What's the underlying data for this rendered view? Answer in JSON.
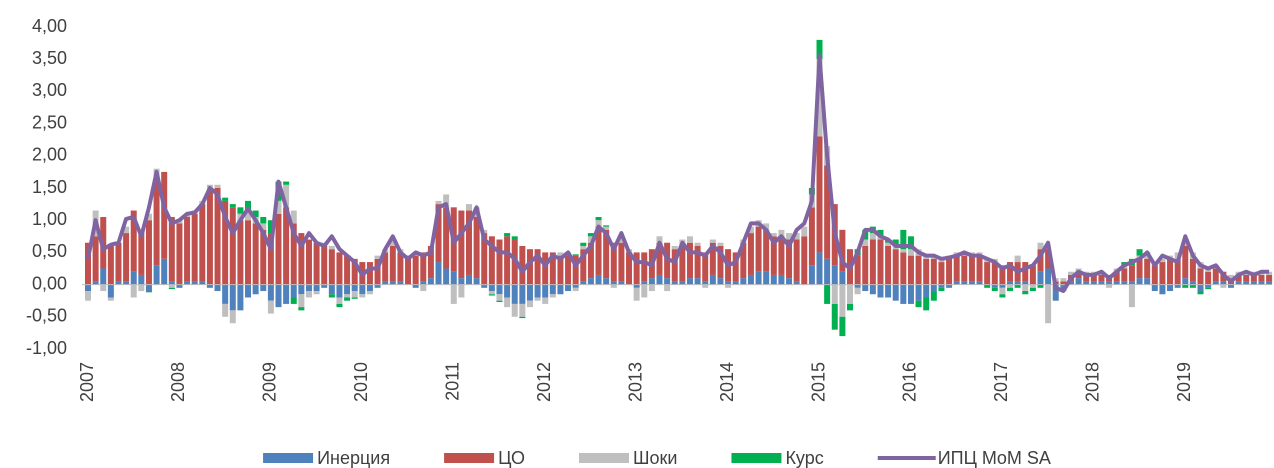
{
  "chart_data": {
    "type": "bar",
    "categories": [
      "2007",
      null,
      null,
      null,
      null,
      null,
      null,
      null,
      null,
      null,
      null,
      null,
      "2008",
      null,
      null,
      null,
      null,
      null,
      null,
      null,
      null,
      null,
      null,
      null,
      "2009",
      null,
      null,
      null,
      null,
      null,
      null,
      null,
      null,
      null,
      null,
      null,
      "2010",
      null,
      null,
      null,
      null,
      null,
      null,
      null,
      null,
      null,
      null,
      null,
      "2011",
      null,
      null,
      null,
      null,
      null,
      null,
      null,
      null,
      null,
      null,
      null,
      "2012",
      null,
      null,
      null,
      null,
      null,
      null,
      null,
      null,
      null,
      null,
      null,
      "2013",
      null,
      null,
      null,
      null,
      null,
      null,
      null,
      null,
      null,
      null,
      null,
      "2014",
      null,
      null,
      null,
      null,
      null,
      null,
      null,
      null,
      null,
      null,
      null,
      "2015",
      null,
      null,
      null,
      null,
      null,
      null,
      null,
      null,
      null,
      null,
      null,
      "2016",
      null,
      null,
      null,
      null,
      null,
      null,
      null,
      null,
      null,
      null,
      null,
      "2017",
      null,
      null,
      null,
      null,
      null,
      null,
      null,
      null,
      null,
      null,
      null,
      "2018",
      null,
      null,
      null,
      null,
      null,
      null,
      null,
      null,
      null,
      null,
      null,
      "2019",
      null,
      null,
      null,
      null,
      null,
      null,
      null,
      null,
      null,
      null,
      null
    ],
    "series": [
      {
        "name": "Инерция",
        "color": "#4f81bd",
        "values": [
          -0.1,
          0.05,
          0.25,
          -0.2,
          0.05,
          0.05,
          0.2,
          0.15,
          -0.1,
          0.3,
          0.4,
          0.05,
          -0.05,
          0.05,
          0.05,
          0.05,
          -0.05,
          -0.1,
          -0.3,
          -0.4,
          -0.4,
          -0.2,
          -0.15,
          -0.1,
          -0.25,
          -0.35,
          -0.3,
          -0.2,
          -0.15,
          -0.1,
          -0.1,
          -0.05,
          -0.15,
          -0.2,
          -0.15,
          -0.1,
          -0.15,
          -0.1,
          -0.05,
          0.05,
          0.05,
          0.05,
          0.0,
          -0.05,
          0.05,
          0.1,
          0.35,
          0.25,
          0.2,
          0.1,
          0.15,
          0.1,
          -0.05,
          -0.1,
          -0.15,
          -0.2,
          -0.3,
          -0.3,
          -0.25,
          -0.2,
          -0.2,
          -0.15,
          -0.15,
          -0.1,
          -0.05,
          0.05,
          0.1,
          0.15,
          0.1,
          0.05,
          0.05,
          0.0,
          -0.05,
          0.05,
          0.1,
          0.15,
          0.1,
          0.05,
          0.05,
          0.1,
          0.1,
          0.05,
          0.15,
          0.1,
          0.05,
          0.05,
          0.1,
          0.15,
          0.2,
          0.2,
          0.15,
          0.15,
          0.1,
          0.05,
          0.0,
          0.3,
          0.5,
          0.4,
          0.3,
          0.2,
          0.0,
          -0.05,
          -0.1,
          -0.15,
          -0.2,
          -0.2,
          -0.25,
          -0.3,
          -0.3,
          -0.25,
          -0.2,
          -0.1,
          -0.05,
          -0.05,
          0.05,
          0.05,
          0.05,
          0.05,
          0.0,
          -0.05,
          -0.05,
          0.05,
          0.05,
          0.05,
          0.0,
          0.2,
          0.25,
          -0.25,
          -0.1,
          0.05,
          0.1,
          0.05,
          0.05,
          0.05,
          0.05,
          0.05,
          0.05,
          0.05,
          0.1,
          0.1,
          -0.1,
          -0.15,
          -0.1,
          -0.05,
          0.1,
          0.05,
          -0.1,
          -0.05,
          0.05,
          0.05,
          -0.05,
          0.05,
          0.05,
          0.05,
          0.05,
          0.05
        ]
      },
      {
        "name": "ЦО",
        "color": "#c0504d",
        "values": [
          0.65,
          0.7,
          0.8,
          0.6,
          0.6,
          0.75,
          0.95,
          0.7,
          1.0,
          1.3,
          1.35,
          1.0,
          0.95,
          1.0,
          1.05,
          1.2,
          1.45,
          1.5,
          1.3,
          1.2,
          1.0,
          1.0,
          0.95,
          0.85,
          0.8,
          1.1,
          1.2,
          0.95,
          0.8,
          0.7,
          0.65,
          0.6,
          0.55,
          0.5,
          0.45,
          0.4,
          0.35,
          0.35,
          0.4,
          0.45,
          0.55,
          0.45,
          0.45,
          0.45,
          0.45,
          0.5,
          0.9,
          0.95,
          1.0,
          1.05,
          1.0,
          0.95,
          0.8,
          0.75,
          0.7,
          0.75,
          0.7,
          0.6,
          0.55,
          0.55,
          0.5,
          0.5,
          0.45,
          0.45,
          0.45,
          0.5,
          0.55,
          0.75,
          0.75,
          0.6,
          0.6,
          0.5,
          0.5,
          0.45,
          0.45,
          0.5,
          0.55,
          0.5,
          0.55,
          0.55,
          0.5,
          0.45,
          0.5,
          0.5,
          0.5,
          0.45,
          0.55,
          0.65,
          0.7,
          0.65,
          0.6,
          0.6,
          0.6,
          0.65,
          0.75,
          0.9,
          1.8,
          1.45,
          0.95,
          0.65,
          0.55,
          0.45,
          0.6,
          0.7,
          0.7,
          0.6,
          0.55,
          0.5,
          0.45,
          0.45,
          0.4,
          0.4,
          0.35,
          0.4,
          0.4,
          0.4,
          0.4,
          0.4,
          0.35,
          0.35,
          0.3,
          0.3,
          0.3,
          0.3,
          0.3,
          0.35,
          0.3,
          0.05,
          0.05,
          0.1,
          0.1,
          0.1,
          0.1,
          0.1,
          0.1,
          0.15,
          0.2,
          0.25,
          0.3,
          0.3,
          0.3,
          0.35,
          0.4,
          0.4,
          0.5,
          0.35,
          0.25,
          0.2,
          0.2,
          0.15,
          0.1,
          0.1,
          0.1,
          0.1,
          0.1,
          0.1
        ]
      },
      {
        "name": "Шоки",
        "color": "#bfbfbf",
        "values": [
          -0.15,
          0.4,
          -0.1,
          -0.05,
          0.0,
          0.1,
          -0.2,
          -0.1,
          0.1,
          0.2,
          0.0,
          -0.05,
          0.05,
          0.05,
          0.05,
          0.05,
          0.1,
          0.05,
          -0.2,
          -0.2,
          0.1,
          0.15,
          0.1,
          0.1,
          -0.2,
          0.2,
          0.35,
          0.2,
          -0.2,
          -0.1,
          -0.05,
          0.05,
          0.05,
          -0.1,
          -0.05,
          -0.1,
          -0.05,
          -0.05,
          0.05,
          0.05,
          0.1,
          0.05,
          0.0,
          0.05,
          -0.1,
          0.0,
          0.05,
          0.2,
          -0.3,
          -0.2,
          0.1,
          0.15,
          0.05,
          -0.05,
          -0.1,
          -0.15,
          -0.2,
          -0.2,
          -0.1,
          -0.05,
          -0.1,
          -0.05,
          0.05,
          0.05,
          -0.05,
          0.05,
          0.1,
          0.1,
          0.05,
          -0.05,
          0.1,
          0.05,
          -0.2,
          -0.2,
          -0.1,
          0.1,
          -0.1,
          0.05,
          0.1,
          0.1,
          0.05,
          -0.05,
          0.05,
          0.05,
          -0.05,
          0.0,
          0.05,
          0.1,
          0.1,
          0.1,
          0.05,
          0.1,
          0.1,
          0.1,
          0.15,
          0.2,
          1.2,
          0.3,
          -0.3,
          -0.5,
          -0.3,
          -0.1,
          0.1,
          0.1,
          0.05,
          0.05,
          0.05,
          0.05,
          0.1,
          0.1,
          0.05,
          0.05,
          0.05,
          0.05,
          0.05,
          0.05,
          0.05,
          0.05,
          0.05,
          0.05,
          -0.1,
          -0.05,
          0.1,
          -0.1,
          -0.05,
          0.1,
          -0.6,
          0.05,
          0.05,
          0.05,
          0.05,
          0.05,
          0.05,
          0.05,
          -0.05,
          0.05,
          0.05,
          -0.35,
          0.05,
          0.05,
          0.05,
          0.05,
          0.05,
          0.1,
          0.1,
          0.1,
          0.1,
          0.05,
          0.05,
          -0.05,
          0.05,
          0.05,
          0.05,
          0.05,
          0.05,
          0.05
        ]
      },
      {
        "name": "Курс",
        "color": "#00b050",
        "values": [
          0.0,
          0.0,
          0.0,
          0.0,
          0.0,
          0.0,
          0.0,
          0.0,
          -0.02,
          0.0,
          0.0,
          -0.02,
          0.0,
          0.0,
          0.0,
          0.0,
          0.0,
          0.0,
          0.05,
          0.05,
          0.1,
          0.15,
          0.1,
          0.1,
          0.2,
          0.3,
          0.05,
          -0.1,
          -0.05,
          0.0,
          0.0,
          0.0,
          -0.05,
          -0.05,
          -0.05,
          -0.02,
          0.0,
          0.0,
          0.0,
          0.0,
          0.0,
          0.0,
          0.0,
          0.0,
          0.0,
          0.0,
          0.0,
          0.0,
          0.0,
          0.0,
          0.0,
          0.0,
          0.0,
          -0.02,
          -0.02,
          0.05,
          0.05,
          -0.02,
          0.0,
          0.0,
          0.0,
          0.0,
          0.0,
          0.0,
          0.02,
          0.05,
          0.05,
          0.05,
          0.02,
          0.0,
          0.0,
          0.0,
          0.0,
          0.0,
          0.0,
          0.0,
          0.0,
          0.0,
          0.0,
          0.0,
          0.0,
          0.0,
          0.0,
          0.0,
          0.0,
          0.0,
          0.0,
          0.0,
          0.0,
          0.0,
          0.0,
          0.0,
          0.0,
          0.0,
          0.0,
          0.1,
          0.3,
          -0.3,
          -0.4,
          -0.3,
          -0.1,
          0.1,
          0.15,
          0.1,
          0.1,
          0.05,
          0.1,
          0.3,
          0.2,
          -0.1,
          -0.2,
          -0.15,
          -0.05,
          0.0,
          0.0,
          0.0,
          0.0,
          0.0,
          -0.05,
          -0.05,
          -0.05,
          -0.05,
          -0.05,
          -0.05,
          -0.05,
          -0.05,
          0.0,
          0.0,
          0.0,
          0.0,
          0.0,
          0.0,
          0.0,
          0.0,
          0.0,
          0.0,
          0.05,
          0.1,
          0.1,
          0.05,
          0.0,
          0.0,
          0.0,
          0.0,
          -0.05,
          -0.05,
          -0.05,
          -0.02,
          0.0,
          0.0,
          0.0,
          0.0,
          0.0,
          0.0,
          0.0,
          0.0
        ]
      },
      {
        "name": "ИПЦ MoM SA",
        "color": "#8064a2",
        "type": "line",
        "values": [
          0.4,
          1.0,
          0.55,
          0.62,
          0.65,
          1.02,
          1.05,
          0.75,
          1.2,
          1.75,
          1.2,
          0.95,
          1.0,
          1.1,
          1.12,
          1.25,
          1.5,
          1.4,
          1.05,
          0.8,
          1.0,
          1.18,
          1.0,
          0.8,
          0.55,
          1.6,
          1.2,
          0.8,
          0.6,
          0.8,
          0.65,
          0.6,
          0.75,
          0.55,
          0.45,
          0.35,
          0.15,
          0.25,
          0.25,
          0.55,
          0.75,
          0.5,
          0.4,
          0.5,
          0.45,
          0.5,
          1.2,
          1.25,
          0.65,
          0.8,
          0.95,
          1.2,
          0.7,
          0.6,
          0.5,
          0.5,
          0.4,
          0.2,
          0.35,
          0.45,
          0.3,
          0.45,
          0.4,
          0.5,
          0.3,
          0.45,
          0.6,
          0.9,
          0.8,
          0.55,
          0.8,
          0.5,
          0.35,
          0.35,
          0.3,
          0.65,
          0.4,
          0.35,
          0.65,
          0.5,
          0.5,
          0.45,
          0.6,
          0.5,
          0.3,
          0.35,
          0.65,
          0.95,
          0.95,
          0.85,
          0.65,
          0.75,
          0.6,
          0.85,
          0.95,
          1.3,
          3.55,
          2.0,
          0.8,
          0.35,
          0.25,
          0.5,
          0.85,
          0.85,
          0.75,
          0.7,
          0.6,
          0.6,
          0.6,
          0.5,
          0.45,
          0.45,
          0.4,
          0.42,
          0.45,
          0.5,
          0.45,
          0.45,
          0.4,
          0.35,
          0.25,
          0.3,
          0.2,
          0.25,
          0.3,
          0.45,
          0.65,
          -0.05,
          -0.1,
          0.1,
          0.2,
          0.15,
          0.15,
          0.2,
          0.1,
          0.2,
          0.3,
          0.35,
          0.4,
          0.5,
          0.3,
          0.45,
          0.4,
          0.35,
          0.75,
          0.45,
          0.3,
          0.25,
          0.3,
          0.15,
          0.05,
          0.15,
          0.2,
          0.15,
          0.2,
          0.2
        ]
      }
    ],
    "ylim": [
      -1,
      4
    ],
    "yticks": [
      {
        "value": -1,
        "label": "-1,00"
      },
      {
        "value": -0.5,
        "label": "-0,50"
      },
      {
        "value": 0,
        "label": "0,00"
      },
      {
        "value": 0.5,
        "label": "0,50"
      },
      {
        "value": 1,
        "label": "1,00"
      },
      {
        "value": 1.5,
        "label": "1,50"
      },
      {
        "value": 2,
        "label": "2,00"
      },
      {
        "value": 2.5,
        "label": "2,50"
      },
      {
        "value": 3,
        "label": "3,00"
      },
      {
        "value": 3.5,
        "label": "3,50"
      },
      {
        "value": 4,
        "label": "4,00"
      }
    ],
    "grid": false,
    "legend": "bottom"
  }
}
